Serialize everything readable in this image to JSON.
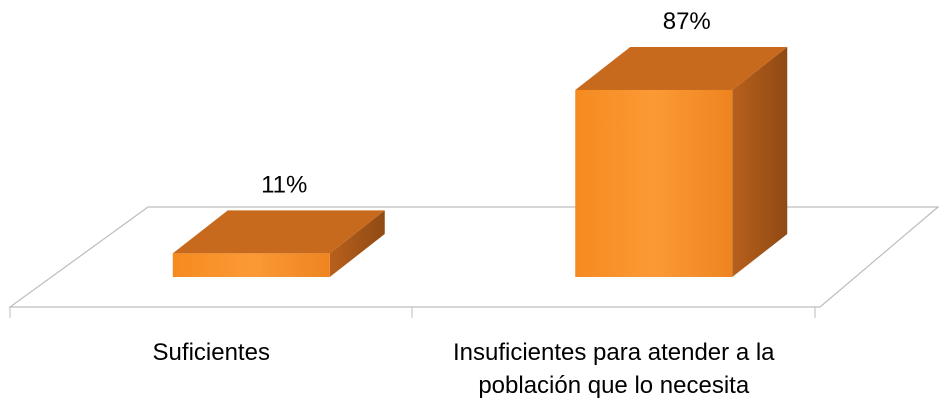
{
  "chart_data": {
    "type": "bar3d",
    "categories": [
      "Suficientes",
      "Insuficientes para atender a la población que lo necesita"
    ],
    "values": [
      11,
      87
    ],
    "value_labels": [
      "11%",
      "87%"
    ],
    "color": "#f7922b"
  }
}
